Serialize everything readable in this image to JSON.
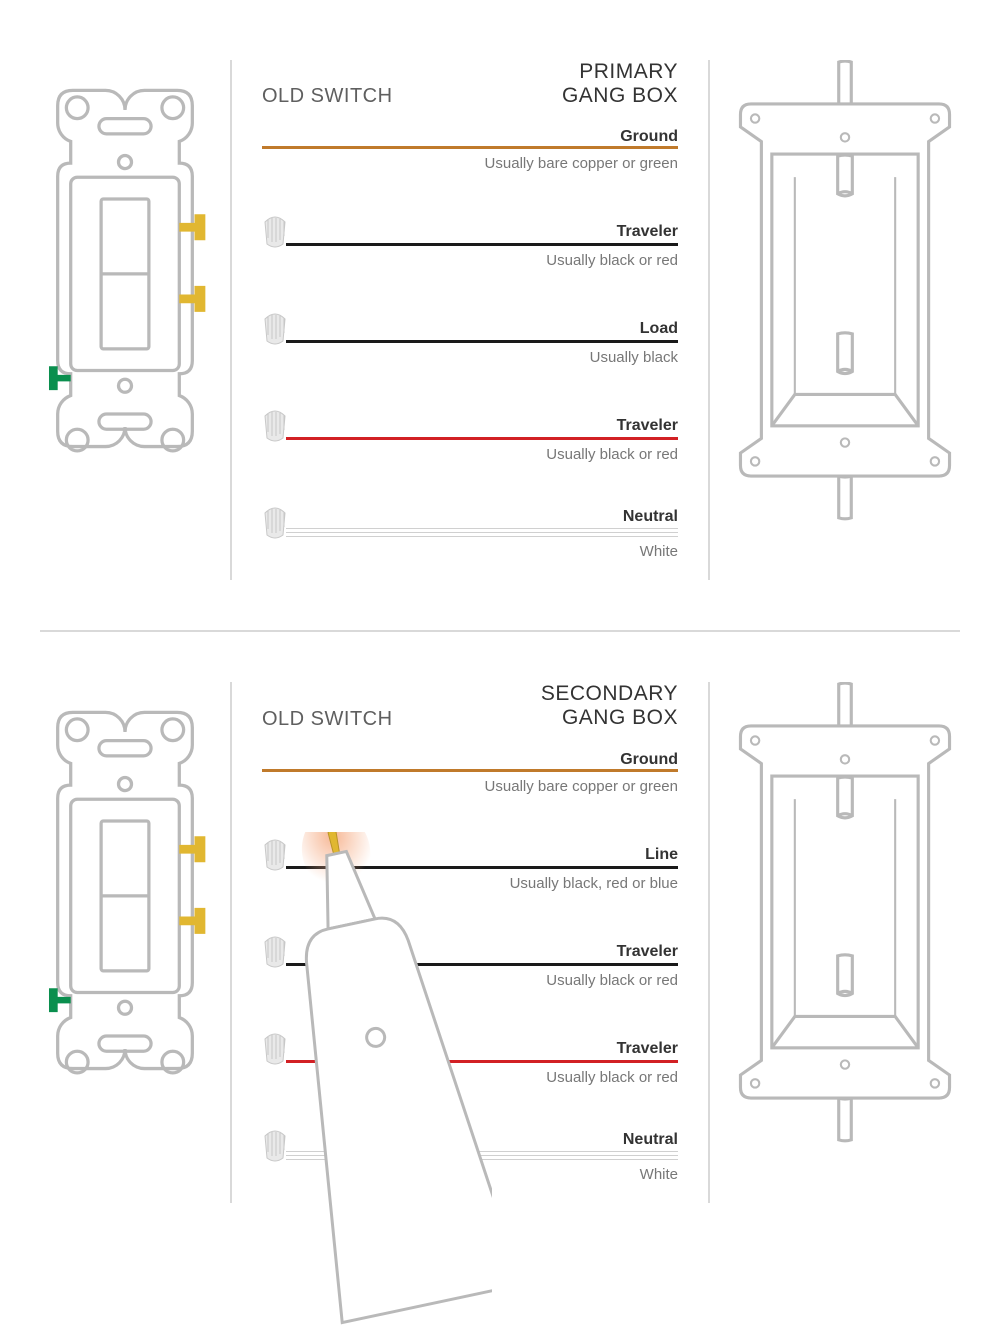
{
  "labels": {
    "old_switch": "OLD SWITCH",
    "primary_gang": "PRIMARY<br>GANG BOX",
    "secondary_gang": "SECONDARY<br>GANG BOX"
  },
  "colors": {
    "outline": "#b9b9b9",
    "outline_dark": "#9a9a9a",
    "text_main": "#333333",
    "text_muted": "#777777",
    "divider": "#d9d9d9",
    "yellow_terminal": "#e1b731",
    "green_terminal": "#0a8f4e",
    "ground": "#c07a2b",
    "black": "#1a1a1a",
    "red": "#d22024",
    "neutral": "#d0d0d0",
    "tester_glow": "#f6b08a"
  },
  "primary": {
    "ground": {
      "label": "Ground",
      "desc": "Usually bare copper or green",
      "color": "#c07a2b"
    },
    "wires": [
      {
        "label": "Traveler",
        "desc": "Usually black or red",
        "color": "#1a1a1a"
      },
      {
        "label": "Load",
        "desc": "Usually black",
        "color": "#1a1a1a"
      },
      {
        "label": "Traveler",
        "desc": "Usually black or red",
        "color": "#d22024"
      }
    ],
    "neutral": {
      "label": "Neutral",
      "desc": "White"
    }
  },
  "secondary": {
    "ground": {
      "label": "Ground",
      "desc": "Usually bare copper or green",
      "color": "#c07a2b"
    },
    "wires": [
      {
        "label": "Line",
        "desc": "Usually black, red or blue",
        "color": "#1a1a1a"
      },
      {
        "label": "Traveler",
        "desc": "Usually black or red",
        "color": "#1a1a1a"
      },
      {
        "label": "Traveler",
        "desc": "Usually black or red",
        "color": "#d22024"
      }
    ],
    "neutral": {
      "label": "Neutral",
      "desc": "White"
    }
  }
}
